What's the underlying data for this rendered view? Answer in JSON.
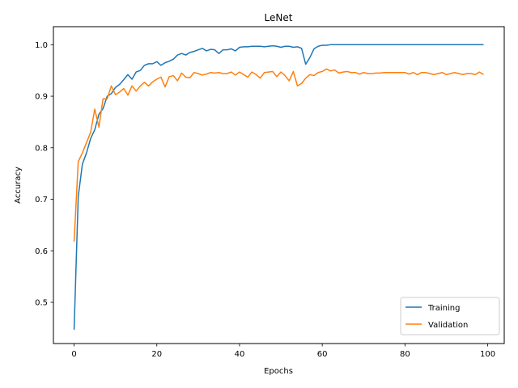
{
  "chart_data": {
    "type": "line",
    "title": "LeNet",
    "xlabel": "Epochs",
    "ylabel": "Accuracy",
    "xlim": [
      -5,
      104
    ],
    "ylim": [
      0.42,
      1.035
    ],
    "xticks": [
      0,
      20,
      40,
      60,
      80,
      100
    ],
    "xtick_labels": [
      "0",
      "20",
      "40",
      "60",
      "80",
      "100"
    ],
    "yticks": [
      0.5,
      0.6,
      0.7,
      0.8,
      0.9,
      1.0
    ],
    "ytick_labels": [
      "0.5",
      "0.6",
      "0.7",
      "0.8",
      "0.9",
      "1.0"
    ],
    "grid": false,
    "legend_position": "lower-right",
    "series": [
      {
        "name": "Training",
        "color": "#1f77b4",
        "values": [
          0.447,
          0.705,
          0.768,
          0.79,
          0.818,
          0.835,
          0.865,
          0.876,
          0.9,
          0.905,
          0.917,
          0.923,
          0.932,
          0.942,
          0.933,
          0.947,
          0.95,
          0.96,
          0.963,
          0.963,
          0.967,
          0.96,
          0.965,
          0.968,
          0.972,
          0.98,
          0.983,
          0.98,
          0.985,
          0.987,
          0.99,
          0.993,
          0.988,
          0.991,
          0.99,
          0.983,
          0.99,
          0.99,
          0.992,
          0.988,
          0.995,
          0.996,
          0.996,
          0.997,
          0.997,
          0.997,
          0.996,
          0.997,
          0.998,
          0.997,
          0.995,
          0.997,
          0.997,
          0.995,
          0.996,
          0.993,
          0.962,
          0.975,
          0.992,
          0.997,
          0.999,
          0.999,
          1.0,
          1.0,
          1.0,
          1.0,
          1.0,
          1.0,
          1.0,
          1.0,
          1.0,
          1.0,
          1.0,
          1.0,
          1.0,
          1.0,
          1.0,
          1.0,
          1.0,
          1.0,
          1.0,
          1.0,
          1.0,
          1.0,
          1.0,
          1.0,
          1.0,
          1.0,
          1.0,
          1.0,
          1.0,
          1.0,
          1.0,
          1.0,
          1.0,
          1.0,
          1.0,
          1.0,
          1.0,
          1.0
        ]
      },
      {
        "name": "Validation",
        "color": "#ff7f0e",
        "values": [
          0.618,
          0.773,
          0.79,
          0.81,
          0.83,
          0.875,
          0.84,
          0.895,
          0.895,
          0.92,
          0.903,
          0.908,
          0.915,
          0.902,
          0.92,
          0.91,
          0.92,
          0.927,
          0.92,
          0.928,
          0.933,
          0.937,
          0.918,
          0.938,
          0.94,
          0.93,
          0.945,
          0.937,
          0.936,
          0.946,
          0.944,
          0.941,
          0.943,
          0.946,
          0.945,
          0.946,
          0.944,
          0.944,
          0.947,
          0.941,
          0.947,
          0.942,
          0.937,
          0.947,
          0.942,
          0.935,
          0.946,
          0.947,
          0.948,
          0.938,
          0.947,
          0.94,
          0.93,
          0.948,
          0.92,
          0.925,
          0.935,
          0.942,
          0.94,
          0.946,
          0.948,
          0.953,
          0.949,
          0.951,
          0.945,
          0.947,
          0.948,
          0.946,
          0.946,
          0.943,
          0.946,
          0.944,
          0.944,
          0.945,
          0.945,
          0.946,
          0.946,
          0.946,
          0.946,
          0.946,
          0.946,
          0.943,
          0.946,
          0.942,
          0.946,
          0.946,
          0.944,
          0.942,
          0.944,
          0.946,
          0.942,
          0.944,
          0.946,
          0.944,
          0.942,
          0.944,
          0.944,
          0.942,
          0.947,
          0.942
        ]
      }
    ]
  }
}
